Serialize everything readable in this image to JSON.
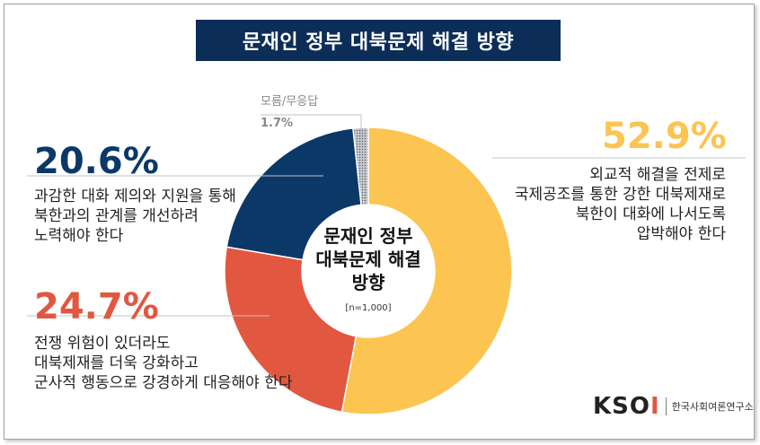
{
  "title": "문재인 정부 대북문제 해결 방향",
  "chart_data": {
    "type": "pie",
    "title": "문재인 정부 대북문제 해결 방향",
    "center_label": [
      "문재인 정부",
      "대북문제 해결",
      "방향"
    ],
    "sample_note": "[n=1,000]",
    "slices": [
      {
        "label": "외교적 해결을 전제로 국제공조를 통한 강한 대북제재로 북한이 대화에 나서도록 압박해야 한다",
        "value": 52.9,
        "pct_text": "52.9%",
        "color": "#fcc451"
      },
      {
        "label": "전쟁 위험이 있더라도 대북제재를 더욱 강화하고 군사적 행동으로 강경하게 대응해야 한다",
        "value": 24.7,
        "pct_text": "24.7%",
        "color": "#e2573f"
      },
      {
        "label": "과감한 대화 제의와 지원을 통해 북한과의 관계를 개선하려 노력해야 한다",
        "value": 20.6,
        "pct_text": "20.6%",
        "color": "#0b3867"
      },
      {
        "label": "모름/무응답",
        "value": 1.7,
        "pct_text": "1.7%",
        "color": "#9aa0a6"
      }
    ]
  },
  "annotations": {
    "right": {
      "pct": "52.9%",
      "lines": [
        "외교적 해결을 전제로",
        "국제공조를 통한 강한 대북제재로",
        "북한이 대화에 나서도록",
        "압박해야 한다"
      ]
    },
    "top_left": {
      "pct": "20.6%",
      "lines": [
        "과감한 대화 제의와 지원을 통해",
        "북한과의 관계를 개선하려",
        "노력해야 한다"
      ]
    },
    "bottom_left": {
      "pct": "24.7%",
      "lines": [
        "전쟁 위험이 있더라도",
        "대북제재를 더욱 강화하고",
        "군사적 행동으로 강경하게 대응해야 한다"
      ]
    },
    "unknown": {
      "label": "모름/무응답",
      "pct": "1.7%"
    }
  },
  "logo": {
    "mark_left": "K",
    "mark_mid": "SO",
    "mark_right": "I",
    "text": "한국사회여론연구소"
  },
  "colors": {
    "title_bg": "#0b2d57",
    "yellow": "#fcc451",
    "red": "#e2573f",
    "navy": "#0b3867",
    "gray": "#9aa0a6"
  }
}
